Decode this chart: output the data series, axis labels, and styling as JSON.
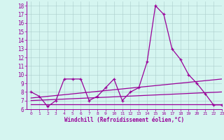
{
  "xlabel": "Windchill (Refroidissement éolien,°C)",
  "xlim": [
    -0.5,
    23
  ],
  "ylim": [
    6,
    18.5
  ],
  "yticks": [
    6,
    7,
    8,
    9,
    10,
    11,
    12,
    13,
    14,
    15,
    16,
    17,
    18
  ],
  "xticks": [
    0,
    1,
    2,
    3,
    4,
    5,
    6,
    7,
    8,
    9,
    10,
    11,
    12,
    13,
    14,
    15,
    16,
    17,
    18,
    19,
    20,
    21,
    22,
    23
  ],
  "bg_color": "#d5f5f0",
  "line_color": "#990099",
  "line1": [
    8.0,
    7.5,
    6.3,
    7.0,
    9.5,
    9.5,
    9.5,
    7.0,
    7.5,
    8.5,
    9.5,
    7.0,
    8.0,
    8.5,
    11.5,
    18.0,
    17.0,
    13.0,
    11.8,
    10.0,
    9.0,
    7.8,
    6.5,
    6.5
  ],
  "line2_x": [
    0,
    23
  ],
  "line2_y": [
    7.3,
    9.5
  ],
  "line3_x": [
    0,
    23
  ],
  "line3_y": [
    7.0,
    8.0
  ],
  "line4_x": [
    0,
    23
  ],
  "line4_y": [
    6.6,
    6.6
  ]
}
